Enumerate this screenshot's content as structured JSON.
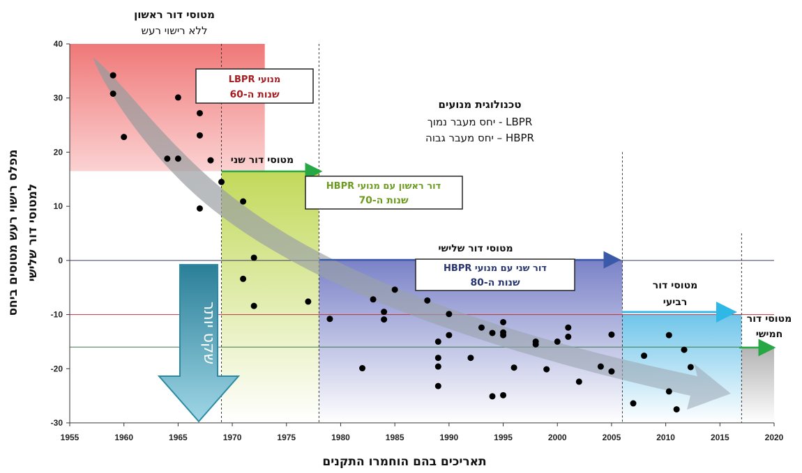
{
  "chart_data": {
    "type": "scatter",
    "xlabel": "תאריכים בהם הוחמרו התקנים",
    "ylabel_line1": "מפלס רישוי רעש מטוסים ביחס",
    "ylabel_line2": "למטוסי דור שלישי",
    "xlim": [
      1955,
      2020
    ],
    "ylim": [
      -30,
      40
    ],
    "xticks": [
      "1955",
      "1960",
      "1965",
      "1970",
      "1975",
      "1980",
      "1985",
      "1990",
      "1995",
      "2000",
      "2005",
      "2010",
      "2015",
      "2020"
    ],
    "yticks": [
      "40",
      "30",
      "20",
      "10",
      "0",
      "-10",
      "-20",
      "-30"
    ],
    "reference_lines_y": [
      0,
      -10,
      -16
    ],
    "generation_boundaries_x": [
      1969,
      1978,
      2006,
      2017
    ],
    "regions": [
      {
        "name": "gen1",
        "x": [
          1955,
          1973
        ],
        "y": [
          16.5,
          40
        ],
        "color": "#f07878"
      },
      {
        "name": "gen2",
        "x": [
          1969,
          1978
        ],
        "y": [
          -30,
          16.5
        ],
        "color": "#c2d95a"
      },
      {
        "name": "gen3",
        "x": [
          1978,
          2006
        ],
        "y": [
          -30,
          0
        ],
        "color": "#7b83c8"
      },
      {
        "name": "gen4",
        "x": [
          2006,
          2017
        ],
        "y": [
          -30,
          -10
        ],
        "color": "#6fc5ea"
      },
      {
        "name": "gen5",
        "x": [
          2017,
          2020
        ],
        "y": [
          -30,
          -16
        ],
        "color": "#b3b3b3"
      }
    ],
    "points": [
      [
        1959,
        34.2
      ],
      [
        1959,
        30.8
      ],
      [
        1960,
        22.8
      ],
      [
        1964,
        18.8
      ],
      [
        1965,
        30.1
      ],
      [
        1965,
        18.8
      ],
      [
        1967,
        27.2
      ],
      [
        1967,
        23.1
      ],
      [
        1967,
        9.6
      ],
      [
        1968,
        18.5
      ],
      [
        1969,
        14.5
      ],
      [
        1971,
        10.9
      ],
      [
        1971,
        -3.4
      ],
      [
        1972,
        0.5
      ],
      [
        1972,
        -8.4
      ],
      [
        1977,
        -7.6
      ],
      [
        1979,
        -10.8
      ],
      [
        1982,
        -19.9
      ],
      [
        1983,
        -7.2
      ],
      [
        1984,
        -9.5
      ],
      [
        1984,
        -10.9
      ],
      [
        1985,
        -5.4
      ],
      [
        1988,
        -7.4
      ],
      [
        1989,
        -15
      ],
      [
        1989,
        -18
      ],
      [
        1989,
        -19.6
      ],
      [
        1989,
        -23.2
      ],
      [
        1990,
        -9.9
      ],
      [
        1990,
        -13.8
      ],
      [
        1992,
        -18
      ],
      [
        1993,
        -12.4
      ],
      [
        1994,
        -13.4
      ],
      [
        1994,
        -25.1
      ],
      [
        1995,
        -11.4
      ],
      [
        1995,
        -13.3
      ],
      [
        1995,
        -13.8
      ],
      [
        1995,
        -24.9
      ],
      [
        1996,
        -19.8
      ],
      [
        1998,
        -15
      ],
      [
        1998,
        -15.5
      ],
      [
        1999,
        -20.1
      ],
      [
        2000,
        -15
      ],
      [
        2001,
        -12.4
      ],
      [
        2001,
        -14.1
      ],
      [
        2002,
        -22.4
      ],
      [
        2004,
        -19.6
      ],
      [
        2005,
        -20.5
      ],
      [
        2005,
        -13.7
      ],
      [
        2007,
        -26.4
      ],
      [
        2008,
        -17.6
      ],
      [
        2010.3,
        -13.8
      ],
      [
        2010.3,
        -24.2
      ],
      [
        2011,
        -27.5
      ],
      [
        2011.7,
        -16.5
      ],
      [
        2012.3,
        -19.7
      ]
    ],
    "colors": {
      "label_red": "#a51d22",
      "label_green": "#6d9b1f",
      "label_blue": "#27356e",
      "arrow_green": "#27a844",
      "arrow_blue": "#3a59a8",
      "arrow_cyan": "#2fb7e6",
      "big_arrow": "#2a8aa3"
    }
  },
  "annotations": {
    "gen1_title": "מטוסי דור ראשון",
    "gen1_subtitle": "ללא רישוי רעש",
    "box1_line1": "מנועי  LBPR",
    "box1_line2": "שנות ה-60",
    "gen2_label": "מטוסי דור שני",
    "box2_line1": "דור ראשון עם מנועי  HBPR",
    "box2_line2": "שנות ה-70",
    "tech_title": "טכנולוגית מנועים",
    "tech_line1": "LBPR - יחס מעבר נמוך",
    "tech_line2": "HBPR – יחס מעבר גבוה",
    "gen3_label": "מטוסי דור שלישי",
    "box3_line1": "דור שני עם מנועי  HBPR",
    "box3_line2": "שנות ה-80",
    "gen4_line1": "מטוסי דור",
    "gen4_line2": "רביעי",
    "gen5_line1": "מטוסי דור",
    "gen5_line2": "חמישי",
    "quieter": "שקט יותר"
  }
}
